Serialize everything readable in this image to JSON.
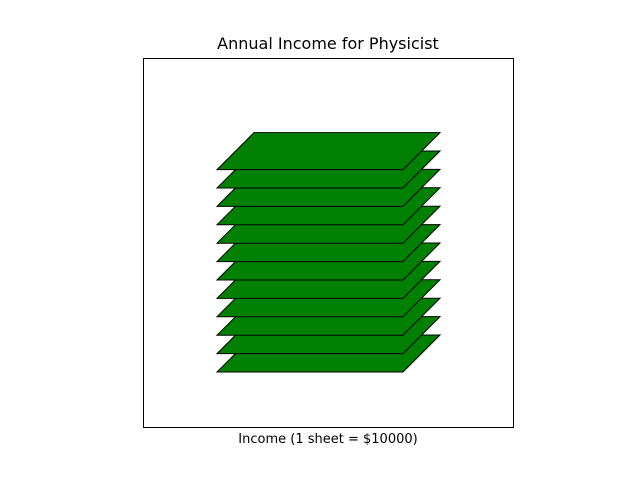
{
  "chart_data": {
    "type": "pictograph",
    "title": "Annual Income for Physicist",
    "xlabel": "Income (1 sheet = $10000)",
    "ylabel": "",
    "unit_value": 10000,
    "sheet_count": 12,
    "value": 120000,
    "grid": false,
    "sheet_color": "#008000",
    "edge_color": "#000000"
  }
}
